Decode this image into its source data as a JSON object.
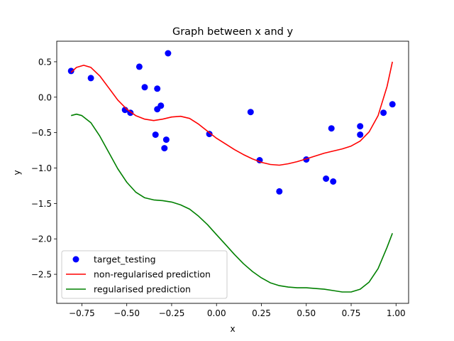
{
  "chart_data": {
    "type": "scatter",
    "title": "Graph between x and y",
    "xlabel": "x",
    "ylabel": "y",
    "xlim": [
      -0.89,
      1.07
    ],
    "ylim": [
      -2.91,
      0.79
    ],
    "xticks": [
      -0.75,
      -0.5,
      -0.25,
      0.0,
      0.25,
      0.5,
      0.75,
      1.0
    ],
    "xtick_labels": [
      "−0.75",
      "−0.50",
      "−0.25",
      "0.00",
      "0.25",
      "0.50",
      "0.75",
      "1.00"
    ],
    "yticks": [
      0.5,
      0.0,
      -0.5,
      -1.0,
      -1.5,
      -2.0,
      -2.5
    ],
    "ytick_labels": [
      "0.5",
      "0.0",
      "−0.5",
      "−1.0",
      "−1.5",
      "−2.0",
      "−2.5"
    ],
    "grid": false,
    "legend_position": "lower-left",
    "scatter": {
      "name": "target_testing",
      "color": "#0000ff",
      "points": [
        [
          -0.81,
          0.37
        ],
        [
          -0.7,
          0.27
        ],
        [
          -0.51,
          -0.18
        ],
        [
          -0.48,
          -0.22
        ],
        [
          -0.43,
          0.43
        ],
        [
          -0.4,
          0.14
        ],
        [
          -0.34,
          -0.53
        ],
        [
          -0.33,
          0.12
        ],
        [
          -0.33,
          -0.17
        ],
        [
          -0.31,
          -0.12
        ],
        [
          -0.29,
          -0.72
        ],
        [
          -0.28,
          -0.6
        ],
        [
          -0.27,
          0.62
        ],
        [
          -0.04,
          -0.52
        ],
        [
          0.19,
          -0.21
        ],
        [
          0.24,
          -0.89
        ],
        [
          0.35,
          -1.33
        ],
        [
          0.5,
          -0.88
        ],
        [
          0.61,
          -1.15
        ],
        [
          0.64,
          -0.44
        ],
        [
          0.65,
          -1.19
        ],
        [
          0.8,
          -0.41
        ],
        [
          0.8,
          -0.53
        ],
        [
          0.93,
          -0.22
        ],
        [
          0.98,
          -0.1
        ]
      ]
    },
    "series": [
      {
        "name": "non-regularised prediction",
        "color": "#ff0000",
        "x": [
          -0.81,
          -0.78,
          -0.74,
          -0.7,
          -0.65,
          -0.6,
          -0.55,
          -0.5,
          -0.45,
          -0.4,
          -0.35,
          -0.3,
          -0.25,
          -0.2,
          -0.15,
          -0.1,
          -0.05,
          0.0,
          0.05,
          0.1,
          0.15,
          0.2,
          0.25,
          0.3,
          0.35,
          0.4,
          0.45,
          0.5,
          0.55,
          0.6,
          0.65,
          0.7,
          0.75,
          0.8,
          0.85,
          0.9,
          0.95,
          0.98
        ],
        "y": [
          0.35,
          0.42,
          0.45,
          0.42,
          0.3,
          0.13,
          -0.04,
          -0.17,
          -0.26,
          -0.31,
          -0.33,
          -0.31,
          -0.28,
          -0.27,
          -0.3,
          -0.38,
          -0.48,
          -0.58,
          -0.66,
          -0.74,
          -0.81,
          -0.87,
          -0.92,
          -0.95,
          -0.96,
          -0.94,
          -0.91,
          -0.87,
          -0.83,
          -0.79,
          -0.76,
          -0.73,
          -0.69,
          -0.62,
          -0.49,
          -0.26,
          0.15,
          0.5
        ]
      },
      {
        "name": "regularised prediction",
        "color": "#008000",
        "x": [
          -0.81,
          -0.78,
          -0.75,
          -0.7,
          -0.65,
          -0.6,
          -0.55,
          -0.5,
          -0.45,
          -0.4,
          -0.35,
          -0.3,
          -0.25,
          -0.2,
          -0.15,
          -0.1,
          -0.05,
          0.0,
          0.05,
          0.1,
          0.15,
          0.2,
          0.25,
          0.3,
          0.35,
          0.4,
          0.45,
          0.5,
          0.55,
          0.6,
          0.65,
          0.7,
          0.75,
          0.8,
          0.85,
          0.9,
          0.95,
          0.98
        ],
        "y": [
          -0.26,
          -0.24,
          -0.26,
          -0.36,
          -0.55,
          -0.78,
          -1.01,
          -1.2,
          -1.34,
          -1.42,
          -1.45,
          -1.46,
          -1.48,
          -1.52,
          -1.58,
          -1.68,
          -1.8,
          -1.94,
          -2.08,
          -2.22,
          -2.35,
          -2.46,
          -2.55,
          -2.62,
          -2.66,
          -2.68,
          -2.69,
          -2.69,
          -2.7,
          -2.71,
          -2.73,
          -2.75,
          -2.75,
          -2.71,
          -2.61,
          -2.42,
          -2.12,
          -1.92
        ]
      }
    ],
    "legend": [
      "target_testing",
      "non-regularised prediction",
      "regularised prediction"
    ]
  }
}
